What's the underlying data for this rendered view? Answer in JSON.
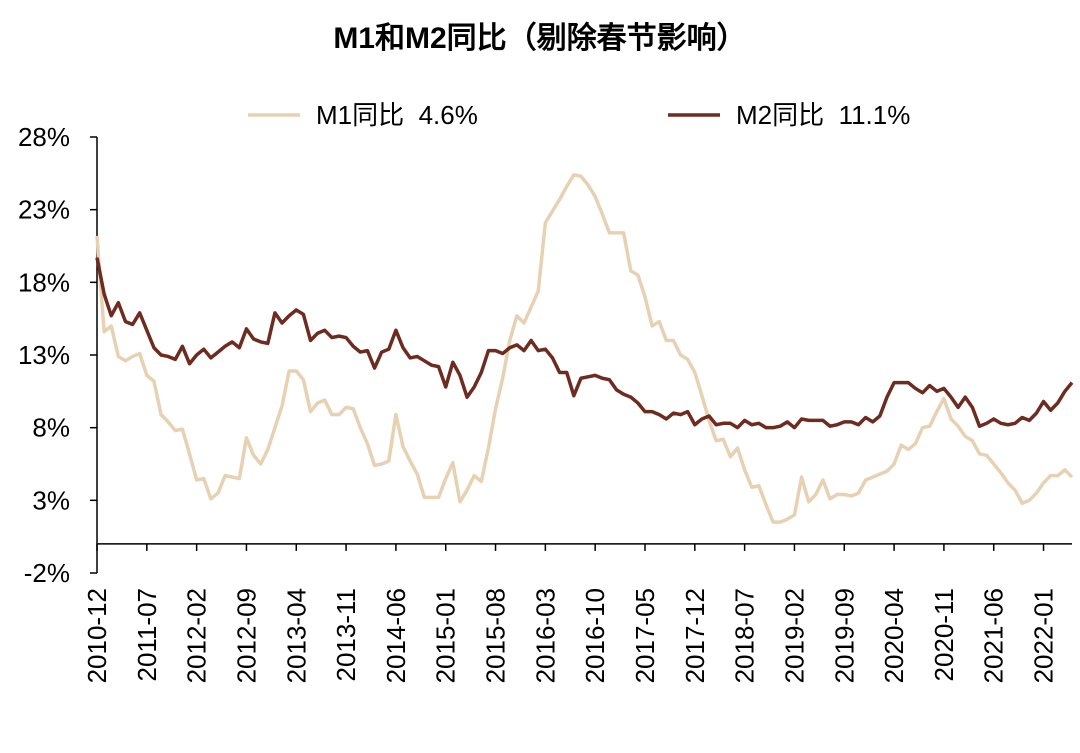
{
  "chart_data": {
    "type": "line",
    "title": "M1和M2同比（剔除春节影响）",
    "categories": [
      "2010-12",
      null,
      null,
      null,
      null,
      null,
      null,
      "2011-07",
      null,
      null,
      null,
      null,
      null,
      null,
      "2012-02",
      null,
      null,
      null,
      null,
      null,
      null,
      "2012-09",
      null,
      null,
      null,
      null,
      null,
      null,
      "2013-04",
      null,
      null,
      null,
      null,
      null,
      null,
      "2013-11",
      null,
      null,
      null,
      null,
      null,
      null,
      "2014-06",
      null,
      null,
      null,
      null,
      null,
      null,
      "2015-01",
      null,
      null,
      null,
      null,
      null,
      null,
      "2015-08",
      null,
      null,
      null,
      null,
      null,
      null,
      "2016-03",
      null,
      null,
      null,
      null,
      null,
      null,
      "2016-10",
      null,
      null,
      null,
      null,
      null,
      null,
      "2017-05",
      null,
      null,
      null,
      null,
      null,
      null,
      "2017-12",
      null,
      null,
      null,
      null,
      null,
      null,
      "2018-07",
      null,
      null,
      null,
      null,
      null,
      null,
      "2019-02",
      null,
      null,
      null,
      null,
      null,
      null,
      "2019-09",
      null,
      null,
      null,
      null,
      null,
      null,
      "2020-04",
      null,
      null,
      null,
      null,
      null,
      null,
      "2020-11",
      null,
      null,
      null,
      null,
      null,
      null,
      "2021-06",
      null,
      null,
      null,
      null,
      null,
      null,
      "2022-01",
      null,
      null,
      null,
      null
    ],
    "series": [
      {
        "name": "M1同比  4.6%",
        "color": "#e6d2b3",
        "values": [
          21.2,
          14.6,
          15.0,
          12.9,
          12.6,
          12.9,
          13.1,
          11.6,
          11.2,
          8.9,
          8.4,
          7.8,
          7.9,
          6.2,
          4.4,
          4.5,
          3.1,
          3.5,
          4.7,
          4.6,
          4.5,
          7.3,
          6.1,
          5.5,
          6.5,
          8.0,
          9.5,
          11.9,
          11.9,
          11.3,
          9.1,
          9.7,
          9.9,
          8.9,
          8.9,
          9.4,
          9.3,
          8.0,
          6.9,
          5.4,
          5.5,
          5.7,
          8.9,
          6.7,
          5.7,
          4.8,
          3.2,
          3.2,
          3.2,
          4.5,
          5.6,
          2.9,
          3.7,
          4.7,
          4.3,
          6.6,
          9.3,
          11.4,
          14.0,
          15.7,
          15.2,
          16.3,
          17.4,
          22.1,
          22.9,
          23.7,
          24.6,
          25.4,
          25.3,
          24.7,
          23.9,
          22.7,
          21.4,
          21.4,
          21.4,
          18.8,
          18.5,
          17.0,
          15.0,
          15.3,
          14.0,
          14.0,
          13.0,
          12.7,
          11.8,
          10.2,
          8.5,
          7.1,
          7.2,
          6.0,
          6.6,
          5.1,
          3.9,
          4.0,
          2.7,
          1.5,
          1.5,
          1.7,
          2.0,
          4.6,
          2.9,
          3.4,
          4.4,
          3.1,
          3.4,
          3.4,
          3.3,
          3.5,
          4.4,
          4.6,
          4.8,
          5.0,
          5.5,
          6.8,
          6.5,
          6.9,
          8.0,
          8.1,
          9.1,
          10.0,
          8.6,
          8.1,
          7.4,
          7.1,
          6.2,
          6.1,
          5.5,
          4.9,
          4.2,
          3.7,
          2.8,
          3.0,
          3.5,
          4.2,
          4.7,
          4.7,
          5.1,
          4.6
        ]
      },
      {
        "name": "M2同比  11.1%",
        "color": "#6e2b1f",
        "values": [
          19.7,
          17.2,
          15.7,
          16.6,
          15.3,
          15.1,
          15.9,
          14.7,
          13.5,
          13.0,
          12.9,
          12.7,
          13.6,
          12.4,
          13.0,
          13.4,
          12.8,
          13.2,
          13.6,
          13.9,
          13.5,
          14.8,
          14.1,
          13.9,
          13.8,
          15.9,
          15.2,
          15.7,
          16.1,
          15.8,
          14.0,
          14.5,
          14.7,
          14.2,
          14.3,
          14.2,
          13.6,
          13.2,
          13.3,
          12.1,
          13.2,
          13.4,
          14.7,
          13.5,
          12.8,
          12.9,
          12.6,
          12.3,
          12.2,
          10.8,
          12.5,
          11.6,
          10.1,
          10.8,
          11.8,
          13.3,
          13.3,
          13.1,
          13.5,
          13.7,
          13.3,
          14.0,
          13.3,
          13.4,
          12.8,
          11.8,
          11.8,
          10.2,
          11.4,
          11.5,
          11.6,
          11.4,
          11.3,
          10.6,
          10.3,
          10.1,
          9.7,
          9.1,
          9.1,
          8.9,
          8.6,
          9.0,
          8.9,
          9.1,
          8.2,
          8.6,
          8.8,
          8.2,
          8.3,
          8.3,
          8.0,
          8.5,
          8.2,
          8.3,
          8.0,
          8.0,
          8.1,
          8.4,
          8.0,
          8.6,
          8.5,
          8.5,
          8.5,
          8.1,
          8.2,
          8.4,
          8.4,
          8.2,
          8.7,
          8.4,
          8.8,
          10.1,
          11.1,
          11.1,
          11.1,
          10.7,
          10.4,
          10.9,
          10.5,
          10.7,
          10.1,
          9.4,
          10.1,
          9.4,
          8.1,
          8.3,
          8.6,
          8.3,
          8.2,
          8.3,
          8.7,
          8.5,
          9.0,
          9.8,
          9.2,
          9.7,
          10.5,
          11.1
        ]
      }
    ],
    "ylim": [
      -2,
      28
    ],
    "yticks": [
      {
        "value": -2,
        "label": "-2%"
      },
      {
        "value": 3,
        "label": "3%"
      },
      {
        "value": 8,
        "label": "8%"
      },
      {
        "value": 13,
        "label": "13%"
      },
      {
        "value": 18,
        "label": "18%"
      },
      {
        "value": 23,
        "label": "23%"
      },
      {
        "value": 28,
        "label": "28%"
      }
    ]
  }
}
